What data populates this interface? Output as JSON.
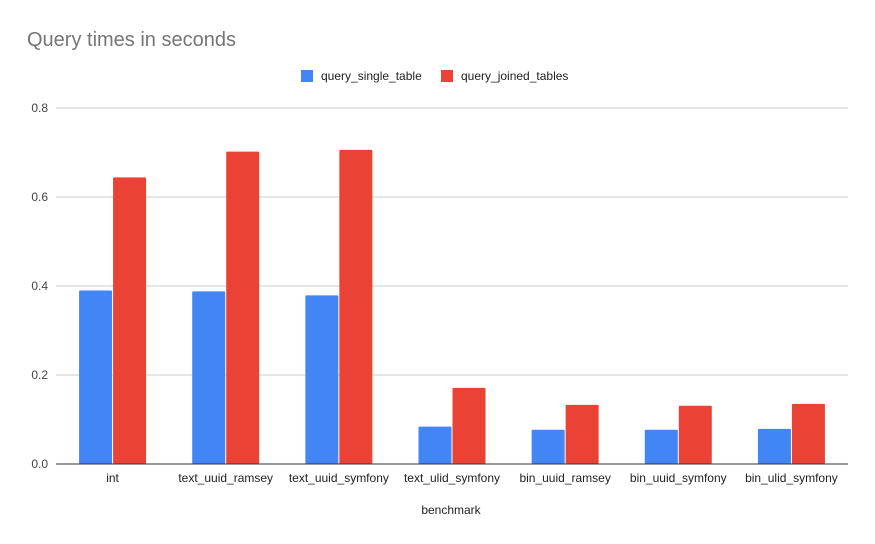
{
  "chart_data": {
    "type": "bar",
    "title": "Query times in seconds",
    "xlabel": "benchmark",
    "ylabel": "",
    "ylim": [
      0,
      0.8
    ],
    "yticks": [
      "0.0",
      "0.2",
      "0.4",
      "0.6",
      "0.8"
    ],
    "grid": true,
    "legend_position": "top",
    "categories": [
      "int",
      "text_uuid_ramsey",
      "text_uuid_symfony",
      "text_ulid_symfony",
      "bin_uuid_ramsey",
      "bin_uuid_symfony",
      "bin_ulid_symfony"
    ],
    "series": [
      {
        "name": "query_single_table",
        "color": "#4285f4",
        "values": [
          0.39,
          0.388,
          0.379,
          0.084,
          0.077,
          0.077,
          0.079
        ]
      },
      {
        "name": "query_joined_tables",
        "color": "#ea4335",
        "values": [
          0.644,
          0.702,
          0.706,
          0.171,
          0.133,
          0.131,
          0.135
        ]
      }
    ]
  }
}
